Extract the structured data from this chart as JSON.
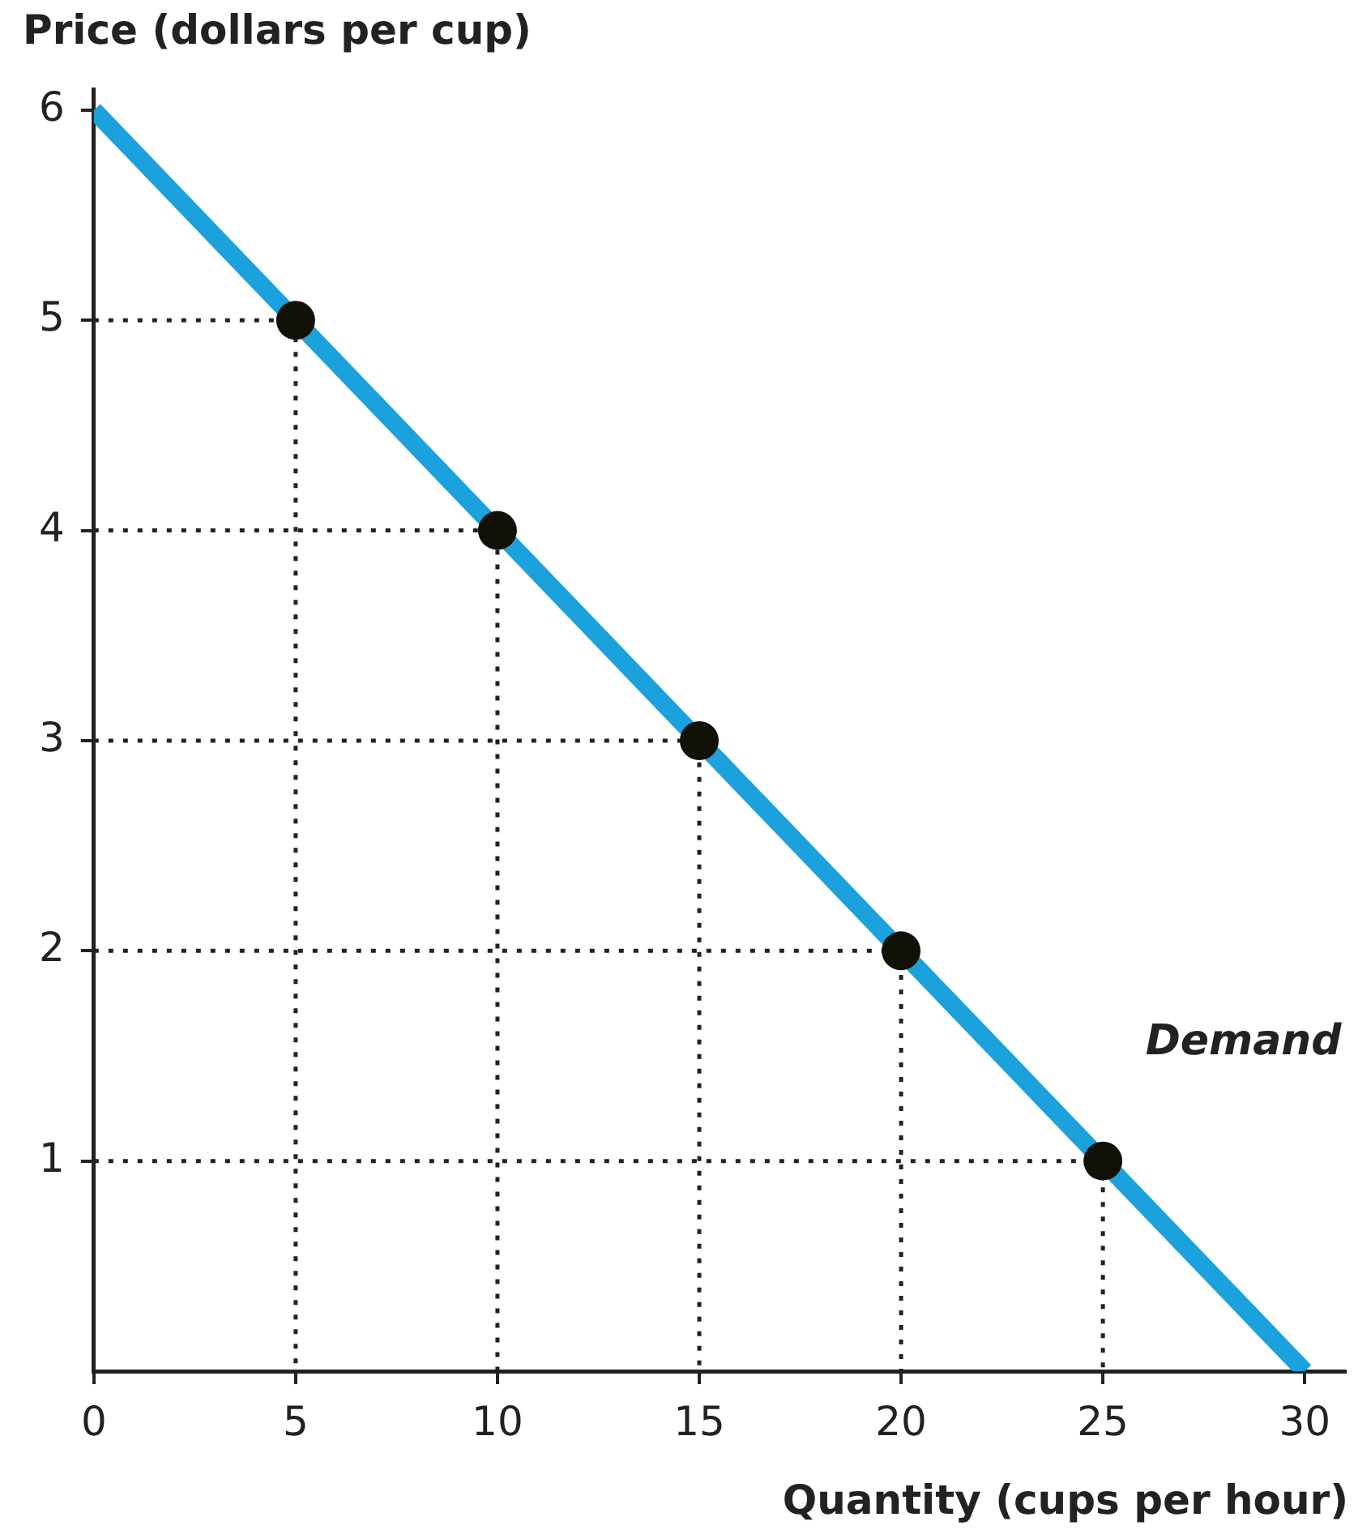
{
  "chart_data": {
    "type": "line",
    "xlabel": "Quantity (cups per hour)",
    "ylabel": "Price (dollars per cup)",
    "xlim": [
      0,
      31
    ],
    "xticks": [
      0,
      5,
      10,
      15,
      20,
      25,
      30
    ],
    "ylim": [
      0,
      6.1
    ],
    "yticks": [
      1,
      2,
      3,
      4,
      5,
      6
    ],
    "grid": false,
    "legend": false,
    "series": [
      {
        "name": "Demand",
        "type": "line",
        "color": "#1ba1dc",
        "x": [
          0,
          30
        ],
        "values": [
          6,
          0
        ],
        "marker": "none",
        "line_style": "solid"
      },
      {
        "type": "scatter",
        "color": "#111108",
        "x": [
          5,
          10,
          15,
          20,
          25
        ],
        "values": [
          5,
          4,
          3,
          2,
          1
        ],
        "marker": "circle"
      },
      {
        "type": "line",
        "color": "#222222",
        "x": [
          0,
          5,
          5
        ],
        "values": [
          5,
          5,
          0
        ],
        "marker": "none",
        "line_style": "dotted"
      },
      {
        "type": "line",
        "color": "#222222",
        "x": [
          0,
          10,
          10
        ],
        "values": [
          4,
          4,
          0
        ],
        "marker": "none",
        "line_style": "dotted"
      },
      {
        "type": "line",
        "color": "#222222",
        "x": [
          0,
          15,
          15
        ],
        "values": [
          3,
          3,
          0
        ],
        "marker": "none",
        "line_style": "dotted"
      },
      {
        "type": "line",
        "color": "#222222",
        "x": [
          0,
          20,
          20
        ],
        "values": [
          2,
          2,
          0
        ],
        "marker": "none",
        "line_style": "dotted"
      },
      {
        "type": "line",
        "color": "#222222",
        "x": [
          0,
          25,
          25
        ],
        "values": [
          1,
          1,
          0
        ],
        "marker": "none",
        "line_style": "dotted"
      }
    ]
  }
}
